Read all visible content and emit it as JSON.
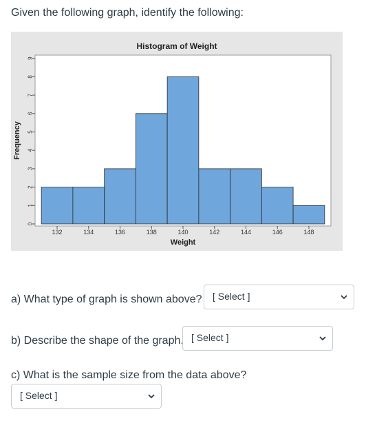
{
  "intro": "Given the following graph, identify the following:",
  "chart_data": {
    "type": "bar",
    "title": "Histogram of Weight",
    "xlabel": "Weight",
    "ylabel": "Frequency",
    "bin_edges": [
      131,
      133,
      135,
      137,
      139,
      141,
      143,
      145,
      147,
      149
    ],
    "values": [
      2,
      2,
      3,
      6,
      8,
      3,
      3,
      2,
      1
    ],
    "xticks": [
      "132",
      "134",
      "136",
      "138",
      "140",
      "142",
      "144",
      "146",
      "148"
    ],
    "yticks": [
      "0",
      "1",
      "2",
      "3",
      "4",
      "5",
      "6",
      "7",
      "8",
      "9"
    ],
    "ylim": [
      0,
      9
    ],
    "bar_color": "#6fa6dc",
    "grid": false
  },
  "questions": [
    {
      "text": "a) What type of graph is shown above?",
      "select": "[ Select ]"
    },
    {
      "text": "b) Describe the shape of the graph.",
      "select": "[ Select ]"
    },
    {
      "text": "c) What is the sample size from the data above?",
      "select": "[ Select ]"
    }
  ],
  "icons": {
    "dropdown": "chevron-down-icon"
  }
}
